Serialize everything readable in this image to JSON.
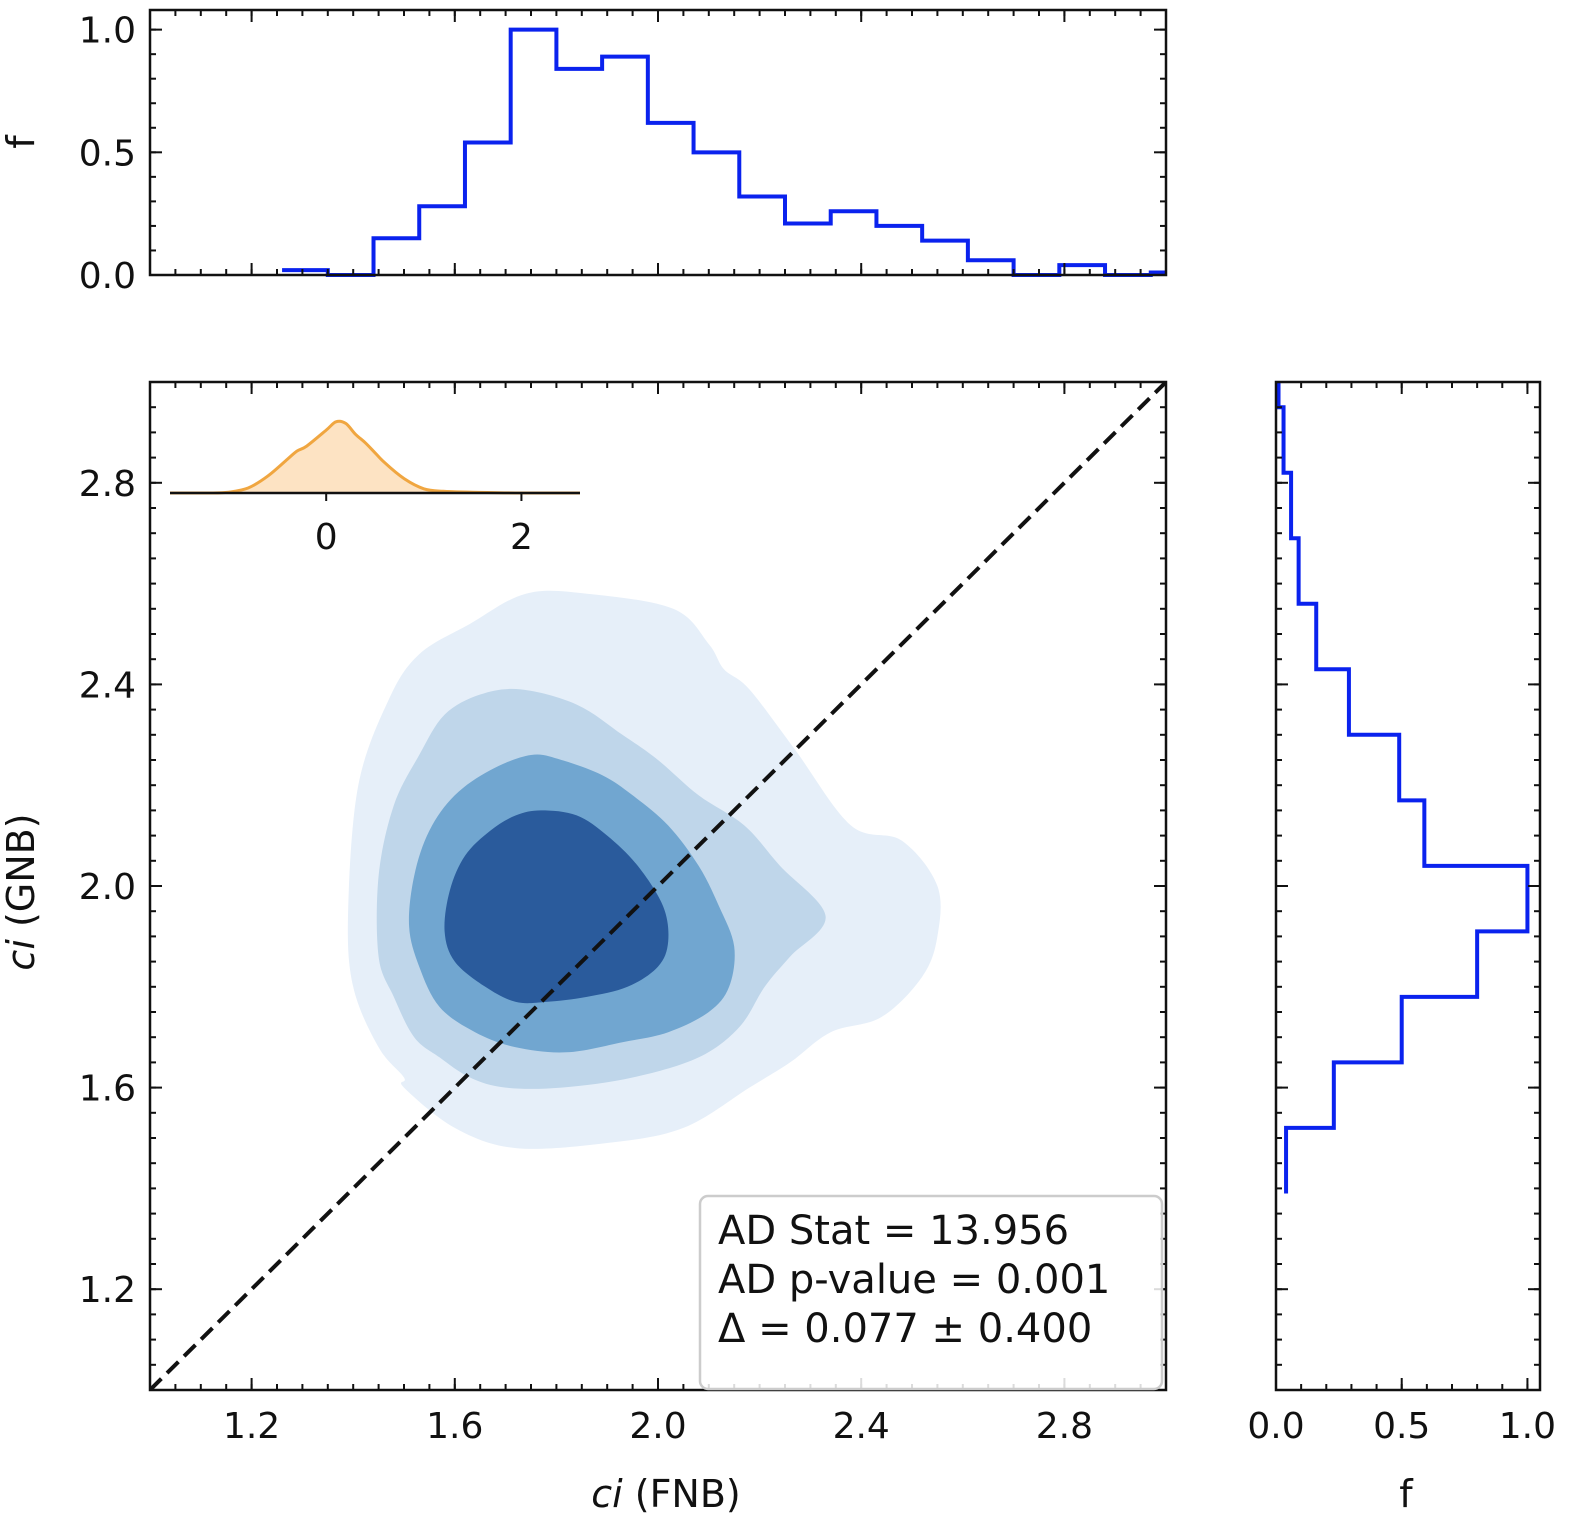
{
  "chart_data": [
    {
      "id": "top_hist",
      "type": "histogram",
      "ylabel": "f",
      "xlim": [
        1.0,
        3.0
      ],
      "ylim": [
        0.0,
        1.08
      ],
      "yticks": [
        0.0,
        0.5,
        1.0
      ],
      "ytick_labels": [
        "0.0",
        "0.5",
        "1.0"
      ],
      "bin_edges": [
        1.26,
        1.35,
        1.44,
        1.53,
        1.62,
        1.71,
        1.8,
        1.89,
        1.98,
        2.07,
        2.16,
        2.25,
        2.34,
        2.43,
        2.52,
        2.61,
        2.7,
        2.79,
        2.88,
        2.97,
        3.0
      ],
      "values": [
        0.02,
        0.0,
        0.15,
        0.28,
        0.54,
        1.0,
        0.84,
        0.89,
        0.62,
        0.5,
        0.32,
        0.21,
        0.26,
        0.2,
        0.14,
        0.06,
        0.0,
        0.04,
        0.0,
        0.01
      ],
      "color": "#0a22ee"
    },
    {
      "id": "main_kde",
      "type": "contour",
      "xlabel_italic": "ci",
      "xlabel_rest": " (FNB)",
      "ylabel_italic": "ci",
      "ylabel_rest": " (GNB)",
      "xlim": [
        1.0,
        3.0
      ],
      "ylim": [
        1.0,
        3.0
      ],
      "xticks": [
        1.2,
        1.6,
        2.0,
        2.4,
        2.8
      ],
      "xtick_labels": [
        "1.2",
        "1.6",
        "2.0",
        "2.4",
        "2.8"
      ],
      "yticks": [
        1.2,
        1.6,
        2.0,
        2.4,
        2.8
      ],
      "ytick_labels": [
        "1.2",
        "1.6",
        "2.0",
        "2.4",
        "2.8"
      ],
      "contour_levels": [
        {
          "color": "#e6eff9",
          "points": [
            [
              1.74,
              2.58
            ],
            [
              1.86,
              2.58
            ],
            [
              2.03,
              2.55
            ],
            [
              2.1,
              2.48
            ],
            [
              2.13,
              2.43
            ],
            [
              2.18,
              2.39
            ],
            [
              2.27,
              2.27
            ],
            [
              2.38,
              2.12
            ],
            [
              2.48,
              2.09
            ],
            [
              2.55,
              2.0
            ],
            [
              2.55,
              1.9
            ],
            [
              2.52,
              1.82
            ],
            [
              2.44,
              1.74
            ],
            [
              2.34,
              1.71
            ],
            [
              2.26,
              1.65
            ],
            [
              2.18,
              1.6
            ],
            [
              2.05,
              1.52
            ],
            [
              1.9,
              1.49
            ],
            [
              1.72,
              1.48
            ],
            [
              1.6,
              1.52
            ],
            [
              1.5,
              1.6
            ],
            [
              1.5,
              1.62
            ],
            [
              1.45,
              1.68
            ],
            [
              1.4,
              1.8
            ],
            [
              1.39,
              1.95
            ],
            [
              1.41,
              2.2
            ],
            [
              1.47,
              2.37
            ],
            [
              1.53,
              2.46
            ],
            [
              1.63,
              2.52
            ]
          ]
        },
        {
          "color": "#bfd6ea",
          "points": [
            [
              1.65,
              2.38
            ],
            [
              1.73,
              2.39
            ],
            [
              1.84,
              2.36
            ],
            [
              1.93,
              2.3
            ],
            [
              2.0,
              2.25
            ],
            [
              2.08,
              2.18
            ],
            [
              2.17,
              2.12
            ],
            [
              2.24,
              2.04
            ],
            [
              2.33,
              1.94
            ],
            [
              2.26,
              1.86
            ],
            [
              2.21,
              1.8
            ],
            [
              2.16,
              1.72
            ],
            [
              2.08,
              1.66
            ],
            [
              1.95,
              1.62
            ],
            [
              1.81,
              1.6
            ],
            [
              1.7,
              1.6
            ],
            [
              1.63,
              1.62
            ],
            [
              1.57,
              1.66
            ],
            [
              1.52,
              1.7
            ],
            [
              1.48,
              1.78
            ],
            [
              1.45,
              1.86
            ],
            [
              1.45,
              2.02
            ],
            [
              1.48,
              2.16
            ],
            [
              1.53,
              2.26
            ],
            [
              1.58,
              2.34
            ]
          ]
        },
        {
          "color": "#71a6d0",
          "points": [
            [
              1.75,
              2.26
            ],
            [
              1.81,
              2.25
            ],
            [
              1.89,
              2.22
            ],
            [
              1.95,
              2.18
            ],
            [
              2.02,
              2.12
            ],
            [
              2.08,
              2.04
            ],
            [
              2.12,
              1.96
            ],
            [
              2.15,
              1.88
            ],
            [
              2.14,
              1.8
            ],
            [
              2.1,
              1.75
            ],
            [
              2.02,
              1.71
            ],
            [
              1.93,
              1.69
            ],
            [
              1.82,
              1.67
            ],
            [
              1.72,
              1.68
            ],
            [
              1.64,
              1.71
            ],
            [
              1.57,
              1.76
            ],
            [
              1.53,
              1.84
            ],
            [
              1.51,
              1.92
            ],
            [
              1.52,
              2.02
            ],
            [
              1.55,
              2.11
            ],
            [
              1.6,
              2.18
            ],
            [
              1.67,
              2.23
            ]
          ]
        },
        {
          "color": "#2a5b9c",
          "points": [
            [
              1.77,
              2.15
            ],
            [
              1.84,
              2.14
            ],
            [
              1.9,
              2.1
            ],
            [
              1.96,
              2.04
            ],
            [
              2.01,
              1.96
            ],
            [
              2.02,
              1.89
            ],
            [
              2.0,
              1.84
            ],
            [
              1.94,
              1.8
            ],
            [
              1.86,
              1.78
            ],
            [
              1.78,
              1.77
            ],
            [
              1.72,
              1.77
            ],
            [
              1.66,
              1.8
            ],
            [
              1.6,
              1.85
            ],
            [
              1.58,
              1.91
            ],
            [
              1.59,
              1.99
            ],
            [
              1.62,
              2.06
            ],
            [
              1.67,
              2.11
            ],
            [
              1.72,
              2.14
            ]
          ]
        }
      ],
      "diagonal": {
        "from": [
          1.0,
          1.0
        ],
        "to": [
          3.0,
          3.0
        ],
        "style": "dashed"
      },
      "stats": [
        "AD Stat = 13.956",
        "AD p-value = 0.001",
        "Δ = 0.077 ± 0.400"
      ],
      "legend_placement": "lower-right"
    },
    {
      "id": "inset_kde",
      "type": "area",
      "xlim": [
        -1.6,
        2.6
      ],
      "ylim": [
        0,
        1.05
      ],
      "xticks": [
        0,
        2
      ],
      "xtick_labels": [
        "0",
        "2"
      ],
      "x": [
        -1.6,
        -1.2,
        -1.0,
        -0.8,
        -0.6,
        -0.4,
        -0.3,
        -0.2,
        0.0,
        0.1,
        0.2,
        0.3,
        0.4,
        0.5,
        0.6,
        0.8,
        1.0,
        1.2,
        1.5,
        2.0,
        2.6
      ],
      "y": [
        0.0,
        0.0,
        0.01,
        0.06,
        0.2,
        0.4,
        0.5,
        0.56,
        0.75,
        0.85,
        0.83,
        0.7,
        0.6,
        0.48,
        0.36,
        0.17,
        0.05,
        0.02,
        0.01,
        0.0,
        0.0
      ],
      "line_color": "#f0a640",
      "fill_color": "#fde3c3"
    },
    {
      "id": "right_hist",
      "type": "histogram",
      "orientation": "horizontal",
      "xlabel": "f",
      "xlim": [
        0.0,
        1.05
      ],
      "ylim": [
        1.0,
        3.0
      ],
      "xticks": [
        0.0,
        0.5,
        1.0
      ],
      "xtick_labels": [
        "0.0",
        "0.5",
        "1.0"
      ],
      "bin_edges": [
        1.39,
        1.52,
        1.65,
        1.78,
        1.91,
        2.04,
        2.17,
        2.3,
        2.43,
        2.56,
        2.69,
        2.82,
        2.95,
        3.0
      ],
      "values": [
        0.04,
        0.23,
        0.5,
        0.8,
        1.0,
        0.59,
        0.49,
        0.29,
        0.16,
        0.09,
        0.06,
        0.03,
        0.01
      ],
      "color": "#0a22ee"
    }
  ]
}
